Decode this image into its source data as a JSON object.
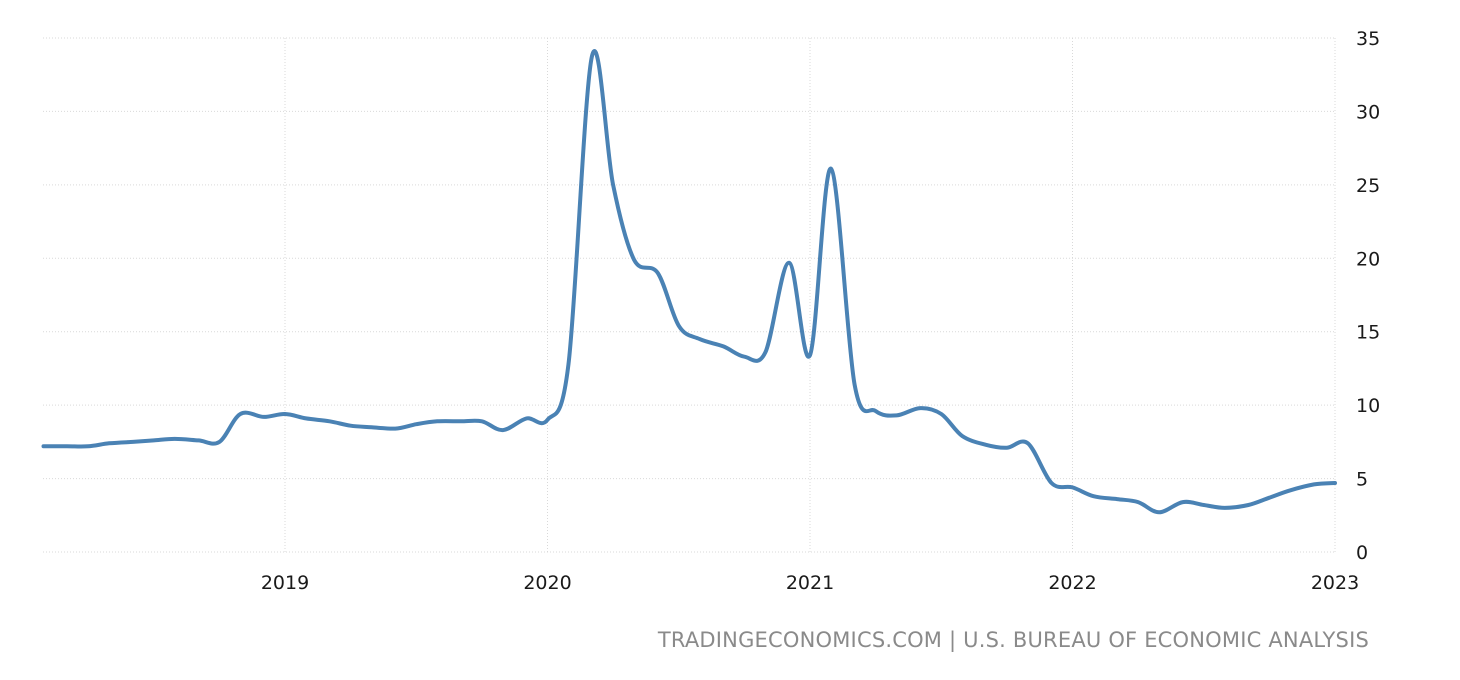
{
  "source_text": "TRADINGECONOMICS.COM | U.S. BUREAU OF ECONOMIC ANALYSIS",
  "chart_data": {
    "type": "line",
    "title": "",
    "xlabel": "",
    "ylabel": "",
    "ylim": [
      0,
      35
    ],
    "xlim": [
      2018.125,
      2023.0
    ],
    "y_axis_position": "right",
    "grid": true,
    "legend": "none",
    "line_color": "#4a82b4",
    "x_ticks": [
      {
        "value": 2019,
        "label": "2019"
      },
      {
        "value": 2020,
        "label": "2020"
      },
      {
        "value": 2021,
        "label": "2021"
      },
      {
        "value": 2022,
        "label": "2022"
      },
      {
        "value": 2023,
        "label": "2023"
      }
    ],
    "y_ticks": [
      {
        "value": 0,
        "label": "0"
      },
      {
        "value": 5,
        "label": "5"
      },
      {
        "value": 10,
        "label": "10"
      },
      {
        "value": 15,
        "label": "15"
      },
      {
        "value": 20,
        "label": "20"
      },
      {
        "value": 25,
        "label": "25"
      },
      {
        "value": 30,
        "label": "30"
      },
      {
        "value": 35,
        "label": "35"
      }
    ],
    "series": [
      {
        "points": [
          [
            2018.08,
            7.2
          ],
          [
            2018.17,
            7.2
          ],
          [
            2018.25,
            7.2
          ],
          [
            2018.33,
            7.4
          ],
          [
            2018.42,
            7.5
          ],
          [
            2018.5,
            7.6
          ],
          [
            2018.58,
            7.7
          ],
          [
            2018.67,
            7.6
          ],
          [
            2018.75,
            7.5
          ],
          [
            2018.83,
            9.4
          ],
          [
            2018.92,
            9.2
          ],
          [
            2019.0,
            9.4
          ],
          [
            2019.08,
            9.1
          ],
          [
            2019.17,
            8.9
          ],
          [
            2019.25,
            8.6
          ],
          [
            2019.33,
            8.5
          ],
          [
            2019.42,
            8.4
          ],
          [
            2019.5,
            8.7
          ],
          [
            2019.58,
            8.9
          ],
          [
            2019.67,
            8.9
          ],
          [
            2019.75,
            8.9
          ],
          [
            2019.83,
            8.3
          ],
          [
            2019.92,
            9.1
          ],
          [
            2020.0,
            9.0
          ],
          [
            2020.08,
            12.8
          ],
          [
            2020.17,
            33.8
          ],
          [
            2020.25,
            25.0
          ],
          [
            2020.33,
            19.9
          ],
          [
            2020.42,
            19.0
          ],
          [
            2020.5,
            15.4
          ],
          [
            2020.58,
            14.5
          ],
          [
            2020.67,
            14.0
          ],
          [
            2020.75,
            13.3
          ],
          [
            2020.83,
            13.6
          ],
          [
            2020.92,
            19.7
          ],
          [
            2021.0,
            13.4
          ],
          [
            2021.08,
            26.1
          ],
          [
            2021.17,
            11.4
          ],
          [
            2021.25,
            9.6
          ],
          [
            2021.33,
            9.3
          ],
          [
            2021.42,
            9.8
          ],
          [
            2021.5,
            9.4
          ],
          [
            2021.58,
            7.9
          ],
          [
            2021.67,
            7.3
          ],
          [
            2021.75,
            7.1
          ],
          [
            2021.83,
            7.4
          ],
          [
            2021.92,
            4.7
          ],
          [
            2022.0,
            4.4
          ],
          [
            2022.08,
            3.8
          ],
          [
            2022.17,
            3.6
          ],
          [
            2022.25,
            3.4
          ],
          [
            2022.33,
            2.7
          ],
          [
            2022.42,
            3.4
          ],
          [
            2022.5,
            3.2
          ],
          [
            2022.58,
            3.0
          ],
          [
            2022.67,
            3.2
          ],
          [
            2022.75,
            3.7
          ],
          [
            2022.83,
            4.2
          ],
          [
            2022.92,
            4.6
          ],
          [
            2023.0,
            4.7
          ]
        ]
      }
    ]
  }
}
